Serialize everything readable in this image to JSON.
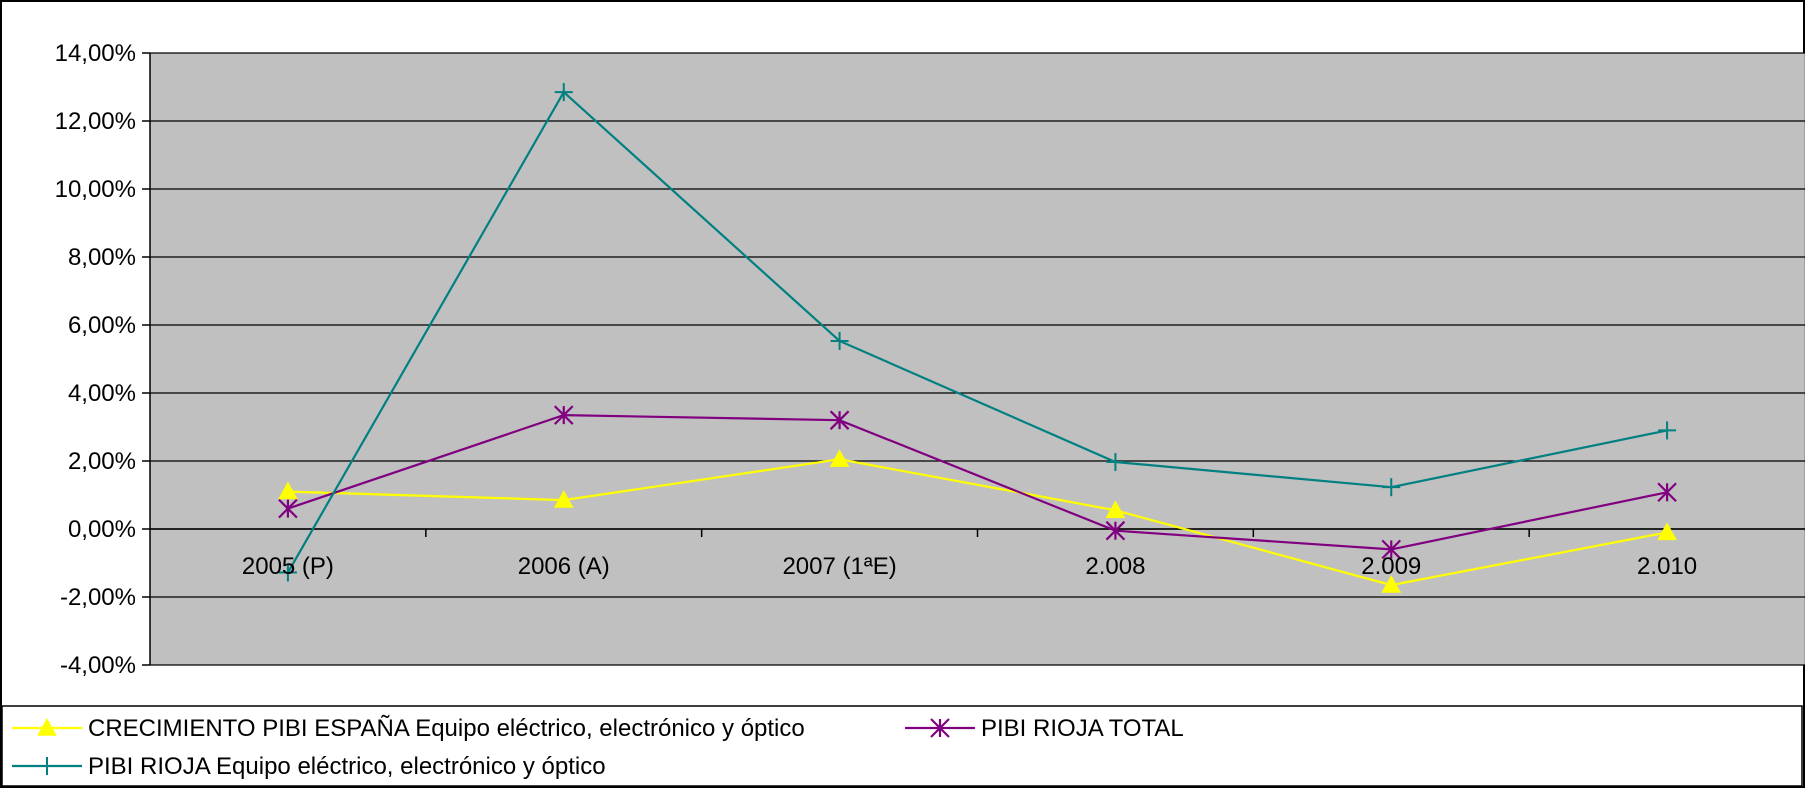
{
  "colors": {
    "plot_background": "#C0C0C0",
    "gridline": "#000000",
    "axis": "#000000"
  },
  "chart_data": {
    "type": "line",
    "title": "",
    "xlabel": "",
    "ylabel": "",
    "categories": [
      "2005 (P)",
      "2006 (A)",
      "2007 (1ªE)",
      "2.008",
      "2.009",
      "2.010"
    ],
    "ylim": [
      -0.04,
      0.14
    ],
    "yticks": [
      -0.04,
      -0.02,
      0,
      0.02,
      0.04,
      0.06,
      0.08,
      0.1,
      0.12,
      0.14
    ],
    "ytick_labels": [
      "-4,00%",
      "-2,00%",
      "0,00%",
      "2,00%",
      "4,00%",
      "6,00%",
      "8,00%",
      "10,00%",
      "12,00%",
      "14,00%"
    ],
    "grid": true,
    "legend_position": "bottom",
    "series": [
      {
        "name": "CRECIMIENTO PIBI ESPAÑA Equipo eléctrico, electrónico y óptico",
        "color": "#FFFF00",
        "marker": "triangle",
        "values": [
          0.011,
          0.0085,
          0.0205,
          0.0055,
          -0.0165,
          -0.001
        ]
      },
      {
        "name": "PIBI RIOJA TOTAL",
        "color": "#800080",
        "marker": "asterisk",
        "values": [
          0.006,
          0.0335,
          0.032,
          -0.0005,
          -0.006,
          0.0108
        ]
      },
      {
        "name": "PIBI RIOJA Equipo eléctrico, electrónico y óptico",
        "color": "#008080",
        "marker": "plus",
        "values": [
          -0.0128,
          0.1285,
          0.0553,
          0.0197,
          0.0123,
          0.029
        ]
      }
    ]
  }
}
